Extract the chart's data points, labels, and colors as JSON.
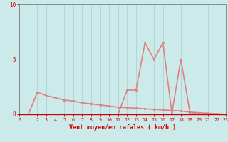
{
  "background_color": "#cceaea",
  "grid_color": "#aacccc",
  "line_color": "#e08080",
  "xlabel": "Vent moyen/en rafales ( km/h )",
  "xlabel_color": "#cc0000",
  "tick_color": "#cc0000",
  "axis_color": "#888888",
  "xlim": [
    0,
    23
  ],
  "ylim": [
    0,
    10
  ],
  "yticks": [
    0,
    5,
    10
  ],
  "xticks": [
    0,
    2,
    3,
    4,
    5,
    6,
    7,
    8,
    9,
    10,
    11,
    12,
    13,
    14,
    15,
    16,
    17,
    18,
    19,
    20,
    21,
    22,
    23
  ],
  "avg_wind_x": [
    0,
    1,
    2,
    3,
    4,
    5,
    6,
    7,
    8,
    9,
    10,
    11,
    12,
    13,
    14,
    15,
    16,
    17,
    18,
    19,
    20,
    21,
    22,
    23
  ],
  "avg_wind_y": [
    0,
    0,
    2.0,
    1.7,
    1.5,
    1.3,
    1.2,
    1.05,
    0.95,
    0.85,
    0.75,
    0.65,
    0.6,
    0.55,
    0.5,
    0.45,
    0.4,
    0.35,
    0.3,
    0.2,
    0.15,
    0.1,
    0.05,
    0.0
  ],
  "gust_x": [
    0,
    1,
    2,
    3,
    4,
    5,
    6,
    7,
    8,
    9,
    10,
    11,
    12,
    13,
    14,
    15,
    16,
    17,
    18,
    19,
    20,
    21,
    22,
    23
  ],
  "gust_y": [
    0,
    0,
    0,
    0,
    0,
    0,
    0,
    0,
    0,
    0,
    0,
    0,
    2.2,
    2.2,
    6.5,
    5.0,
    6.5,
    0.1,
    5.0,
    0.2,
    0.0,
    0.0,
    0.0,
    0.0
  ]
}
